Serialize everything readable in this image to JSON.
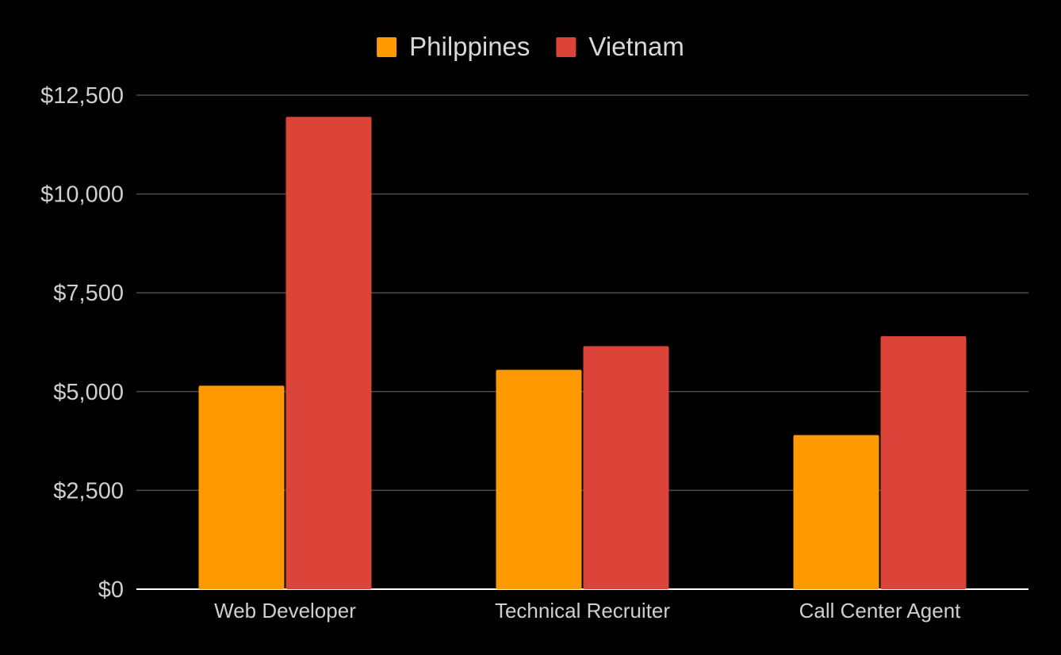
{
  "chart_data": {
    "type": "bar",
    "title": "",
    "xlabel": "",
    "ylabel": "",
    "categories": [
      "Web Developer",
      "Technical Recruiter",
      "Call Center Agent"
    ],
    "series": [
      {
        "name": "Philppines",
        "color": "#ff9900",
        "values": [
          5150,
          5550,
          3900
        ]
      },
      {
        "name": "Vietnam",
        "color": "#dd4439",
        "values": [
          11950,
          6150,
          6400
        ]
      }
    ],
    "ylim": [
      0,
      12500
    ],
    "yticks": [
      0,
      2500,
      5000,
      7500,
      10000,
      12500
    ],
    "ytick_labels": [
      "$0",
      "$2,500",
      "$5,000",
      "$7,500",
      "$10,000",
      "$12,500"
    ],
    "grid": true,
    "legend_position": "top",
    "background": "#000000"
  }
}
